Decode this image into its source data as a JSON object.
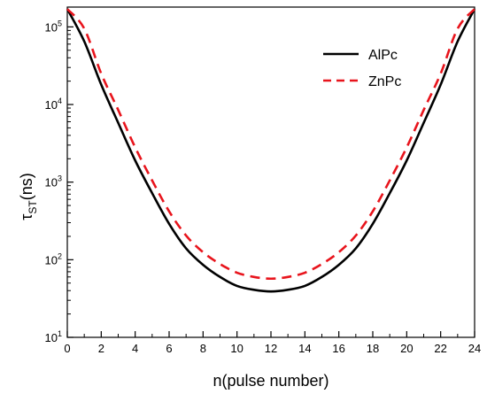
{
  "chart_data": {
    "type": "line",
    "xlabel": "n(pulse number)",
    "ylabel_main": "τ",
    "ylabel_sub": "ST",
    "ylabel_tail": "(ns)",
    "xlim": [
      0,
      24
    ],
    "ylim": [
      10,
      180000
    ],
    "yscale": "log",
    "grid": false,
    "legend_position": "top-right",
    "x_ticks": [
      0,
      2,
      4,
      6,
      8,
      10,
      12,
      14,
      16,
      18,
      20,
      22,
      24
    ],
    "x_tick_labels": [
      "0",
      "2",
      "4",
      "6",
      "8",
      "10",
      "12",
      "14",
      "16",
      "18",
      "20",
      "22",
      "24"
    ],
    "y_ticks": [
      {
        "value": 10,
        "base": "10",
        "exp": "1"
      },
      {
        "value": 100,
        "base": "10",
        "exp": "2"
      },
      {
        "value": 1000,
        "base": "10",
        "exp": "3"
      },
      {
        "value": 10000,
        "base": "10",
        "exp": "4"
      },
      {
        "value": 100000,
        "base": "10",
        "exp": "5"
      }
    ],
    "x": [
      0,
      1,
      2,
      3,
      4,
      5,
      6,
      7,
      8,
      9,
      10,
      11,
      12,
      13,
      14,
      15,
      16,
      17,
      18,
      19,
      20,
      21,
      22,
      23,
      24
    ],
    "series": [
      {
        "name": "AlPc",
        "color": "#000000",
        "dash": "solid",
        "values": [
          170000,
          65000,
          18000,
          5800,
          1900,
          720,
          290,
          140,
          86,
          60,
          46,
          41,
          39,
          41,
          46,
          60,
          86,
          140,
          290,
          720,
          1900,
          5800,
          18000,
          65000,
          170000
        ]
      },
      {
        "name": "ZnPc",
        "color": "#e8141c",
        "dash": "dashed",
        "values": [
          170000,
          95000,
          25000,
          8500,
          2800,
          1050,
          420,
          205,
          125,
          88,
          68,
          60,
          57,
          60,
          68,
          88,
          125,
          205,
          420,
          1050,
          2800,
          8500,
          25000,
          95000,
          170000
        ]
      }
    ]
  }
}
